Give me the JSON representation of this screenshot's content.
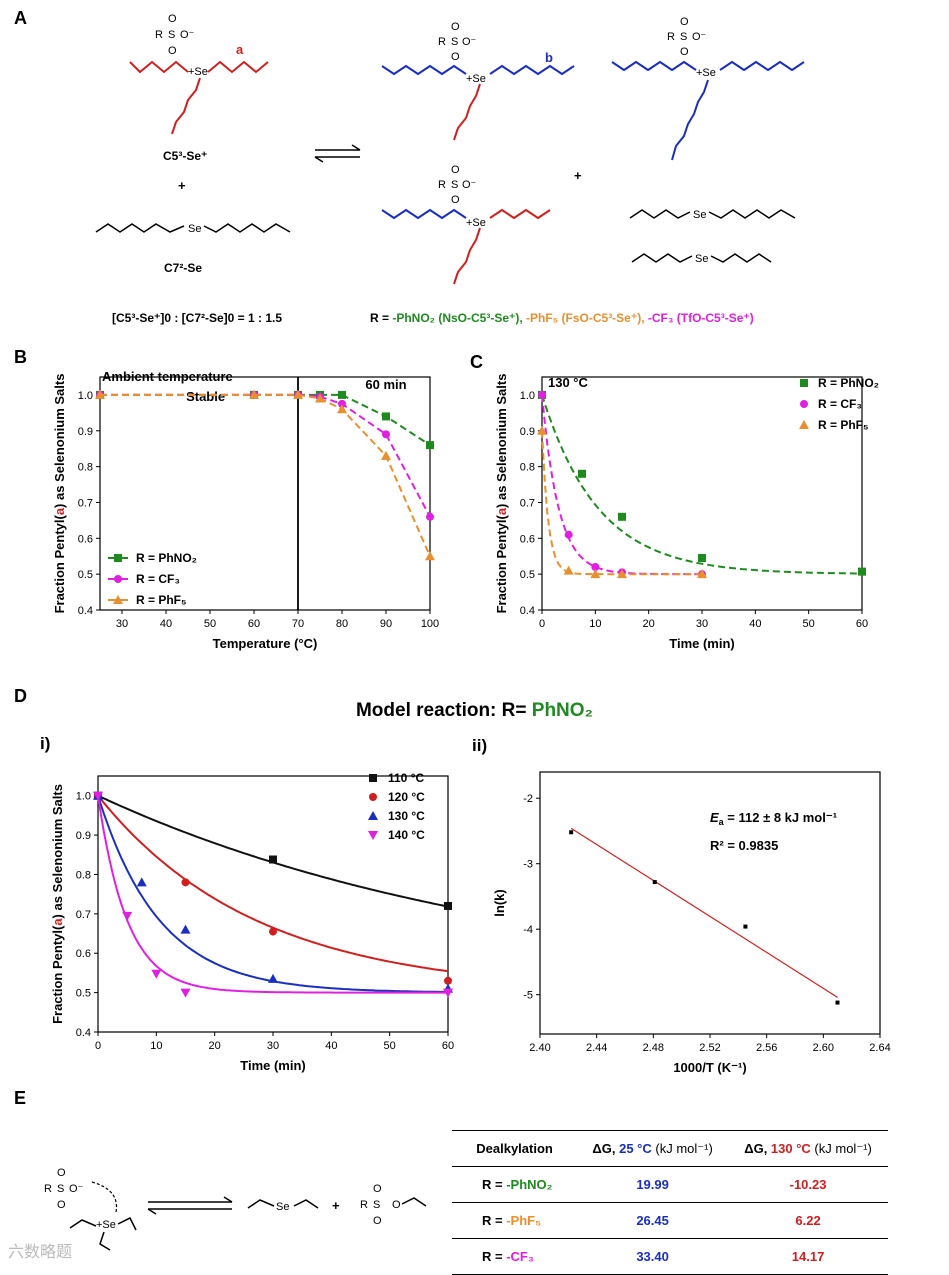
{
  "panels": {
    "A": "A",
    "B": "B",
    "C": "C",
    "D": "D",
    "E": "E"
  },
  "schemeA": {
    "label_a": "a",
    "label_b": "b",
    "c5_cation": "C5³-Se⁺",
    "c7_selenide": "C7²-Se",
    "plus": "+",
    "ratio": "[C5³-Se⁺]0 : [C7²-Se]0 = 1 : 1.5",
    "r_prefix": "R = ",
    "r_nso": "-PhNO₂ (NsO-C5³-Se⁺),",
    "r_fso": " -PhF₅ (FsO-C5³-Se⁺),",
    "r_tfo": " -CF₃ (TfO-C5³-Se⁺)",
    "sulfonate_r": "R",
    "sulfonate_s": "S",
    "sulfonate_o": "O",
    "sulfonate_om": "O⁻",
    "se_plus": "+Se",
    "se": "Se",
    "colors": {
      "red": "#d01f1f",
      "blue": "#1a2fbf",
      "green": "#1f8a1f",
      "orange": "#e8902f",
      "magenta": "#e020e0"
    }
  },
  "chart_data": [
    {
      "id": "B",
      "type": "line",
      "title": "60 min",
      "annotation_1": "Ambient temperature",
      "annotation_2": "Stable",
      "xlabel": "Temperature (°C)",
      "ylabel": "Fraction Pentyl(a) as Selenonium Salts",
      "xlim": [
        25,
        100
      ],
      "ylim": [
        0.4,
        1.05
      ],
      "xticks": [
        30,
        40,
        50,
        60,
        70,
        80,
        90,
        100
      ],
      "yticks": [
        0.4,
        0.5,
        0.6,
        0.7,
        0.8,
        0.9,
        1.0
      ],
      "divider_x": 70,
      "series": [
        {
          "name": "R = PhNO₂",
          "color": "#1f8a1f",
          "marker": "square",
          "x": [
            25,
            60,
            70,
            75,
            80,
            90,
            100
          ],
          "y": [
            1.0,
            1.0,
            1.0,
            1.0,
            1.0,
            0.94,
            0.86
          ]
        },
        {
          "name": "R = CF₃",
          "color": "#e020e0",
          "marker": "circle",
          "x": [
            25,
            60,
            70,
            75,
            80,
            90,
            100
          ],
          "y": [
            1.0,
            1.0,
            1.0,
            0.995,
            0.975,
            0.89,
            0.66
          ]
        },
        {
          "name": "R = PhF₅",
          "color": "#e8902f",
          "marker": "triangle",
          "x": [
            25,
            60,
            70,
            75,
            80,
            90,
            100
          ],
          "y": [
            1.0,
            1.0,
            1.0,
            0.99,
            0.96,
            0.83,
            0.55
          ]
        }
      ]
    },
    {
      "id": "C",
      "type": "scatter",
      "title": "130 °C",
      "xlabel": "Time (min)",
      "ylabel": "Fraction Pentyl(a) as Selenonium Salts",
      "xlim": [
        0,
        60
      ],
      "ylim": [
        0.4,
        1.05
      ],
      "xticks": [
        0,
        10,
        20,
        30,
        40,
        50,
        60
      ],
      "yticks": [
        0.4,
        0.5,
        0.6,
        0.7,
        0.8,
        0.9,
        1.0
      ],
      "series": [
        {
          "name": "R = PhNO₂",
          "color": "#1f8a1f",
          "marker": "square",
          "x": [
            0,
            7.5,
            15,
            30,
            60
          ],
          "y": [
            1.0,
            0.78,
            0.66,
            0.545,
            0.507
          ],
          "k": 0.095
        },
        {
          "name": "R = CF₃",
          "color": "#e020e0",
          "marker": "circle",
          "x": [
            0,
            5,
            10,
            15,
            30
          ],
          "y": [
            1.0,
            0.61,
            0.52,
            0.505,
            0.5
          ],
          "k": 0.32
        },
        {
          "name": "R = PhF₅",
          "color": "#e8902f",
          "marker": "triangle",
          "x": [
            0,
            5,
            10,
            15,
            30
          ],
          "y": [
            0.9,
            0.51,
            0.5,
            0.5,
            0.5
          ],
          "k": 0.85
        }
      ]
    },
    {
      "id": "D-i",
      "type": "scatter",
      "xlabel": "Time (min)",
      "ylabel": "Fraction Pentyl(a) as Selenonium Salts",
      "xlim": [
        0,
        60
      ],
      "ylim": [
        0.4,
        1.05
      ],
      "xticks": [
        0,
        10,
        20,
        30,
        40,
        50,
        60
      ],
      "yticks": [
        0.4,
        0.5,
        0.6,
        0.7,
        0.8,
        0.9,
        1.0
      ],
      "series": [
        {
          "name": "110 °C",
          "color": "#111111",
          "marker": "square",
          "x": [
            0,
            30,
            60
          ],
          "y": [
            1.0,
            0.838,
            0.72
          ],
          "k": 0.0138
        },
        {
          "name": "120 °C",
          "color": "#d01f1f",
          "marker": "circle",
          "x": [
            0,
            15,
            30,
            60
          ],
          "y": [
            1.0,
            0.78,
            0.655,
            0.53
          ],
          "k": 0.037
        },
        {
          "name": "130 °C",
          "color": "#1a2fbf",
          "marker": "triangle",
          "x": [
            0,
            7.5,
            15,
            30,
            60
          ],
          "y": [
            1.0,
            0.78,
            0.66,
            0.535,
            0.51
          ],
          "k": 0.095
        },
        {
          "name": "140 °C",
          "color": "#e020e0",
          "marker": "triangle-down",
          "x": [
            0,
            5,
            10,
            15,
            60
          ],
          "y": [
            1.0,
            0.695,
            0.548,
            0.5,
            0.5
          ],
          "k": 0.2
        }
      ]
    },
    {
      "id": "D-ii",
      "type": "scatter",
      "xlabel": "1000/T (K⁻¹)",
      "ylabel": "ln(k)",
      "xlim": [
        2.4,
        2.64
      ],
      "ylim": [
        -5.6,
        -1.6
      ],
      "xticks": [
        2.4,
        2.44,
        2.48,
        2.52,
        2.56,
        2.6,
        2.64
      ],
      "yticks": [
        -5,
        -4,
        -3,
        -2
      ],
      "points": {
        "x": [
          2.422,
          2.481,
          2.545,
          2.61
        ],
        "y": [
          -2.52,
          -3.28,
          -3.96,
          -5.12
        ]
      },
      "fit": {
        "x": [
          2.422,
          2.61
        ],
        "y": [
          -2.46,
          -5.04
        ],
        "color": "#d01f1f"
      },
      "annotation_ea_symbol": "E",
      "annotation_ea_sub": "a",
      "annotation_ea_value": " = 112 ± 8 kJ mol⁻¹",
      "annotation_r2": "R² = 0.9835"
    }
  ],
  "panelD": {
    "title_prefix": "Model reaction: R= ",
    "title_r": "PhNO₂",
    "sub_i": "i)",
    "sub_ii": "ii)"
  },
  "panelE": {
    "table_headers": [
      "Dealkylation",
      "ΔG, ",
      "25 °C",
      " (kJ mol⁻¹)",
      "ΔG, ",
      "130 °C",
      " (kJ mol⁻¹)"
    ],
    "rows": [
      {
        "prefix": "R = ",
        "r": "-PhNO₂",
        "dg25": "19.99",
        "dg130": "-10.23"
      },
      {
        "prefix": "R = ",
        "r": "-PhF₅",
        "dg25": "26.45",
        "dg130": "6.22"
      },
      {
        "prefix": "R = ",
        "r": "-CF₃",
        "dg25": "33.40",
        "dg130": "14.17"
      }
    ]
  },
  "watermark": "六数略题"
}
